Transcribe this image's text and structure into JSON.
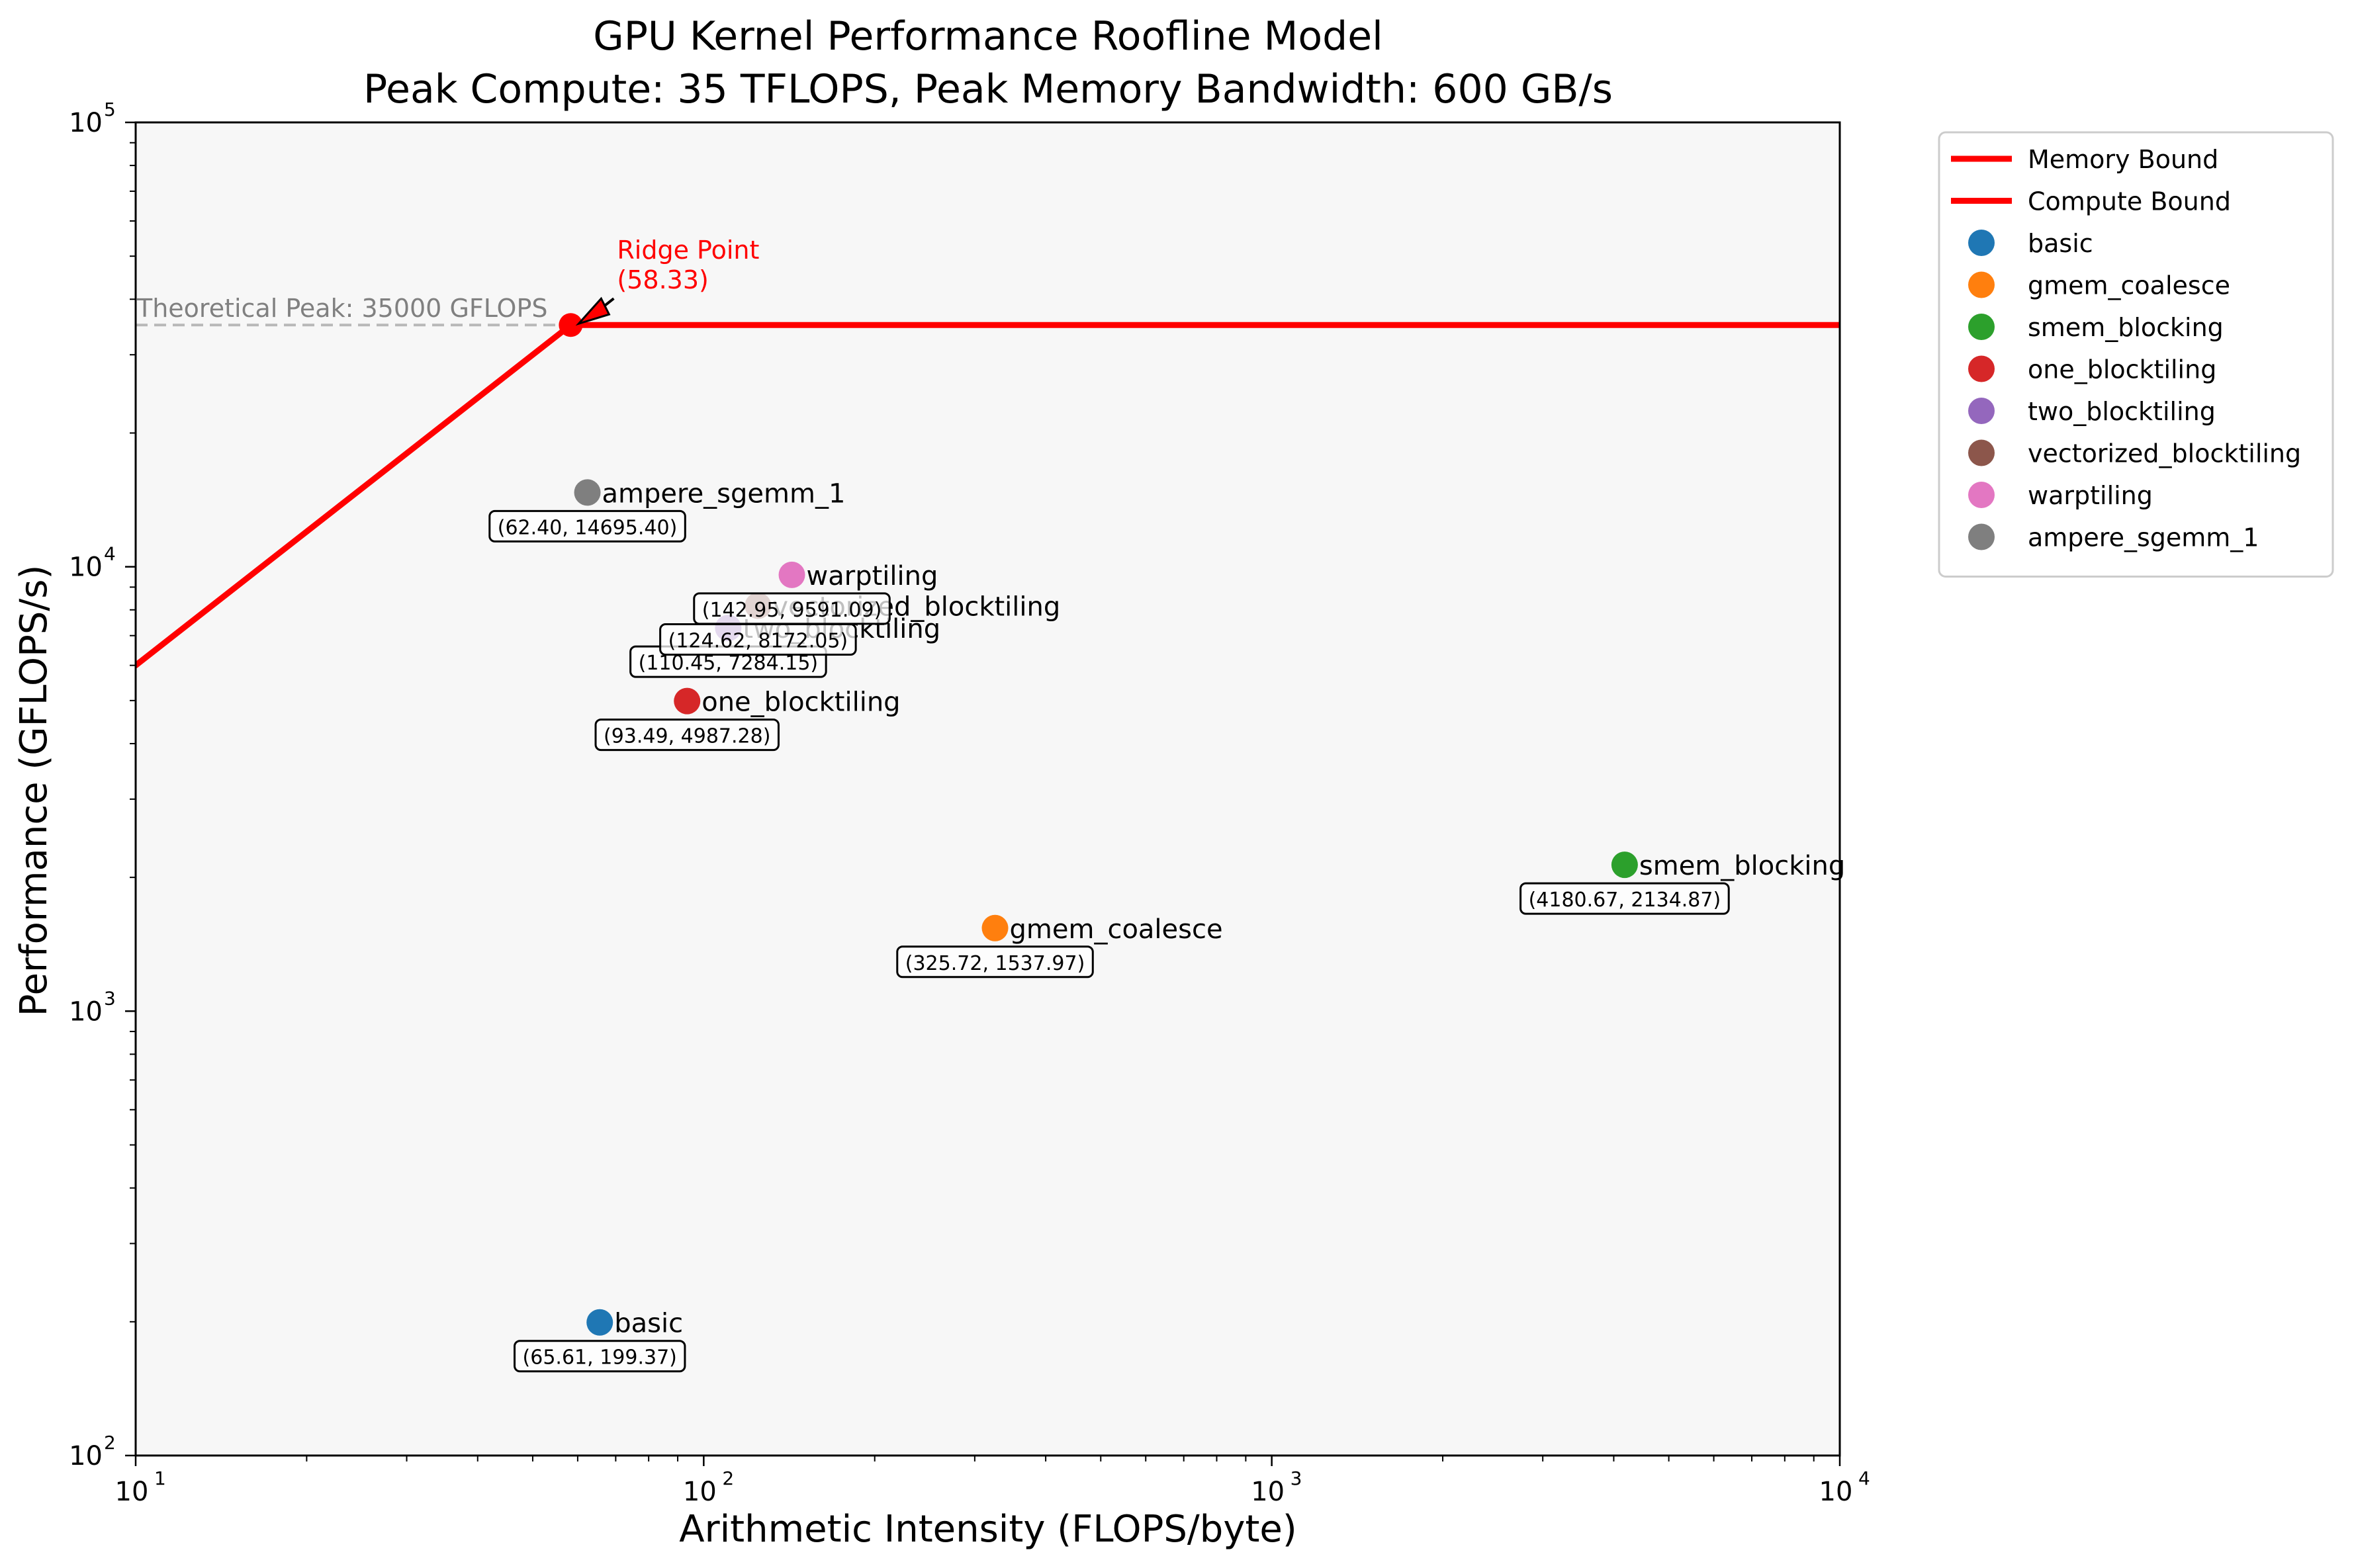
{
  "chart_data": {
    "type": "scatter",
    "title_line1": "GPU Kernel Performance Roofline Model",
    "title_line2": "Peak Compute: 35 TFLOPS, Peak Memory Bandwidth: 600 GB/s",
    "xlabel": "Arithmetic Intensity (FLOPS/byte)",
    "ylabel": "Performance (GFLOPS/s)",
    "x_scale": "log",
    "y_scale": "log",
    "xlim": [
      10,
      10000
    ],
    "ylim": [
      100,
      100000
    ],
    "x_ticks": [
      {
        "value": 10,
        "base": "10",
        "exp": "1"
      },
      {
        "value": 100,
        "base": "10",
        "exp": "2"
      },
      {
        "value": 1000,
        "base": "10",
        "exp": "3"
      },
      {
        "value": 10000,
        "base": "10",
        "exp": "4"
      }
    ],
    "y_ticks": [
      {
        "value": 100,
        "base": "10",
        "exp": "2"
      },
      {
        "value": 1000,
        "base": "10",
        "exp": "3"
      },
      {
        "value": 10000,
        "base": "10",
        "exp": "4"
      },
      {
        "value": 100000,
        "base": "10",
        "exp": "5"
      }
    ],
    "grid": false,
    "plot_background": "#f7f7f7",
    "peak_compute_gflops": 35000,
    "peak_bandwidth_gbs": 600,
    "ridge_point": 58.33,
    "ridge_label_line1": "Ridge Point",
    "ridge_label_line2": "(58.33)",
    "theoretical_peak_label": "Theoretical Peak: 35000 GFLOPS",
    "roofline_color": "#ff0000",
    "legend": {
      "placement": "outside upper right",
      "lines": [
        {
          "label": "Memory Bound",
          "color": "#ff0000"
        },
        {
          "label": "Compute Bound",
          "color": "#ff0000"
        }
      ]
    },
    "series": [
      {
        "name": "basic",
        "x": 65.61,
        "y": 199.37,
        "color": "#1f77b4",
        "annotation": "(65.61, 199.37)"
      },
      {
        "name": "gmem_coalesce",
        "x": 325.72,
        "y": 1537.97,
        "color": "#ff7f0e",
        "annotation": "(325.72, 1537.97)"
      },
      {
        "name": "smem_blocking",
        "x": 4180.67,
        "y": 2134.87,
        "color": "#2ca02c",
        "annotation": "(4180.67, 2134.87)"
      },
      {
        "name": "one_blocktiling",
        "x": 93.49,
        "y": 4987.28,
        "color": "#d62728",
        "annotation": "(93.49, 4987.28)"
      },
      {
        "name": "two_blocktiling",
        "x": 110.45,
        "y": 7284.15,
        "color": "#9467bd",
        "annotation": "(110.45, 7284.15)"
      },
      {
        "name": "vectorized_blocktiling",
        "x": 124.62,
        "y": 8172.05,
        "color": "#8c564b",
        "annotation": "(124.62, 8172.05)"
      },
      {
        "name": "warptiling",
        "x": 142.95,
        "y": 9591.09,
        "color": "#e377c2",
        "annotation": "(142.95, 9591.09)"
      },
      {
        "name": "ampere_sgemm_1",
        "x": 62.4,
        "y": 14695.4,
        "color": "#7f7f7f",
        "annotation": "(62.40, 14695.40)"
      }
    ]
  }
}
